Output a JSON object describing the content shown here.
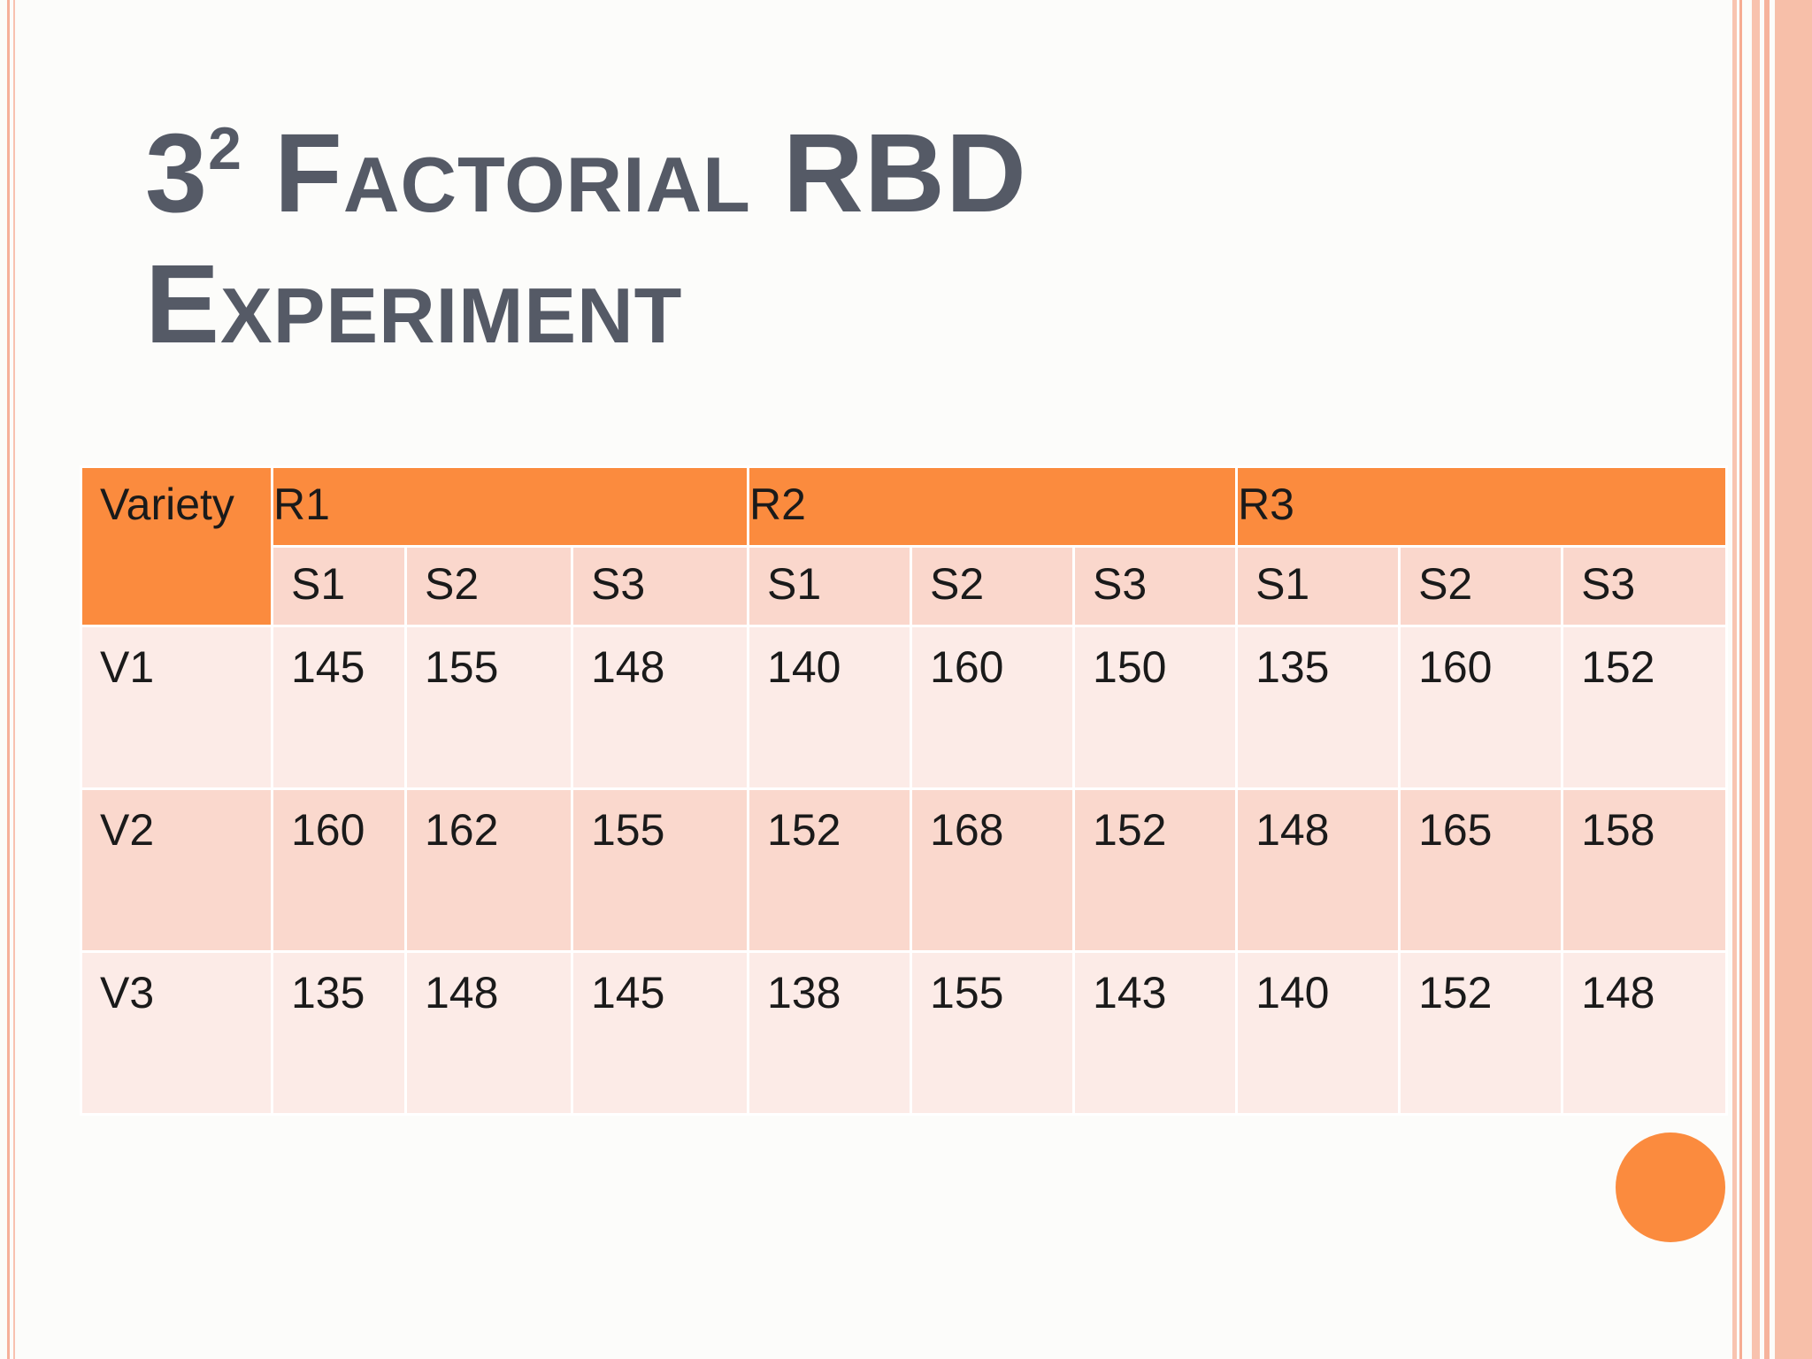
{
  "title": {
    "base": "3",
    "superscript": "2",
    "line1": "Factorial RBD",
    "line2": "Experiment"
  },
  "table": {
    "variety_header": "Variety",
    "replications": [
      "R1",
      "R2",
      "R3"
    ],
    "sub_headers": [
      "S1",
      "S2",
      "S3",
      "S1",
      "S2",
      "S3",
      "S1",
      "S2",
      "S3"
    ],
    "rows": [
      {
        "label": "V1",
        "values": [
          "145",
          "155",
          "148",
          "140",
          "160",
          "150",
          "135",
          "160",
          "152"
        ]
      },
      {
        "label": "V2",
        "values": [
          "160",
          "162",
          "155",
          "152",
          "168",
          "152",
          "148",
          "165",
          "158"
        ]
      },
      {
        "label": "V3",
        "values": [
          "135",
          "148",
          "145",
          "138",
          "155",
          "143",
          "140",
          "152",
          "148"
        ]
      }
    ]
  },
  "colors": {
    "accent": "#fb8b3e",
    "title": "#555a66",
    "row_light": "#fcebe7",
    "row_dark": "#fad8cd"
  }
}
